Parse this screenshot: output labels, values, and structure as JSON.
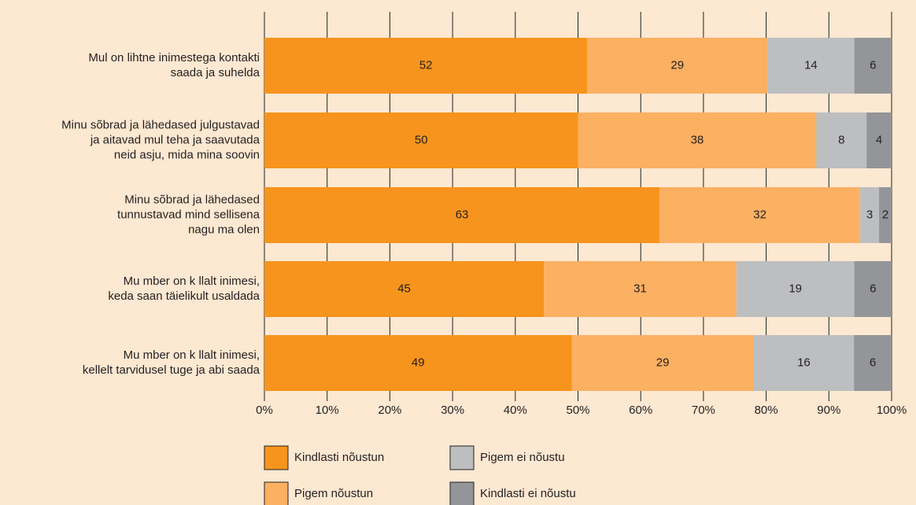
{
  "chart_data": {
    "type": "bar",
    "orientation": "horizontal",
    "stacked": true,
    "categories": [
      [
        "Mul on lihtne inimestega kontakti",
        "saada ja suhelda"
      ],
      [
        "Minu sõbrad ja lähedased julgustavad",
        "ja aitavad mul teha ja saavutada",
        "neid asju, mida mina soovin"
      ],
      [
        "Minu sõbrad ja lähedased",
        "tunnustavad mind sellisena",
        "nagu ma olen"
      ],
      [
        "Mu   mber on k   llalt inimesi,",
        "keda saan täielikult usaldada"
      ],
      [
        "Mu   mber on k   llalt inimesi,",
        "kellelt tarvidusel tuge ja abi saada"
      ]
    ],
    "series": [
      {
        "name": "Kindlasti nõustun",
        "color": "#f7941d",
        "values": [
          52,
          50,
          63,
          45,
          49
        ]
      },
      {
        "name": "Pigem nõustun",
        "color": "#fbb062",
        "values": [
          29,
          38,
          32,
          31,
          29
        ]
      },
      {
        "name": "Pigem ei nõustu",
        "color": "#bcbec0",
        "values": [
          14,
          8,
          3,
          19,
          16
        ]
      },
      {
        "name": "Kindlasti ei nõustu",
        "color": "#939598",
        "values": [
          6,
          4,
          2,
          6,
          6
        ]
      }
    ],
    "xlim": [
      0,
      100
    ],
    "xticks": [
      {
        "value": 0,
        "label": "0%"
      },
      {
        "value": 10,
        "label": "10%"
      },
      {
        "value": 20,
        "label": "20%"
      },
      {
        "value": 30,
        "label": "30%"
      },
      {
        "value": 40,
        "label": "40%"
      },
      {
        "value": 50,
        "label": "50%"
      },
      {
        "value": 60,
        "label": "60%"
      },
      {
        "value": 70,
        "label": "70%"
      },
      {
        "value": 80,
        "label": "80%"
      },
      {
        "value": 90,
        "label": "90%"
      },
      {
        "value": 100,
        "label": "100%"
      }
    ],
    "grid": true,
    "legend": "bottom"
  }
}
